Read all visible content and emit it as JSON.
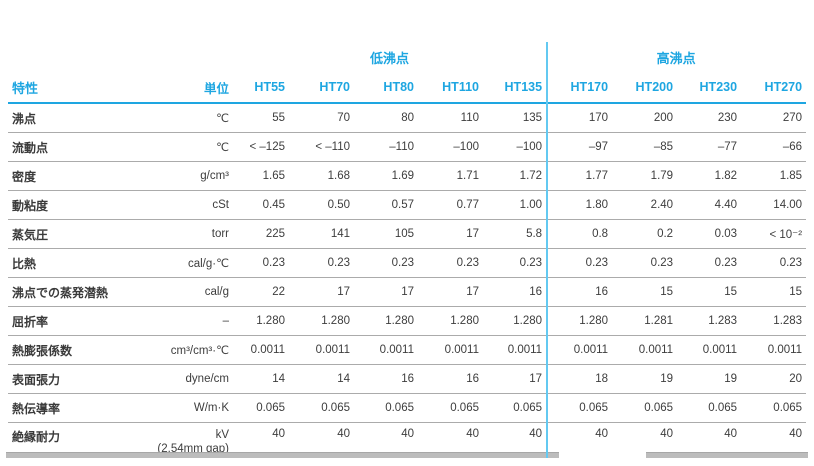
{
  "colors": {
    "accent_blue": "#1ea6e1",
    "divider_blue": "#63c9f1",
    "body_text": "#3d3d3d",
    "row_separator": "#ababab",
    "footer_gray": "#bcbcbc"
  },
  "table": {
    "group_headers": {
      "low": "低沸点",
      "high": "高沸点"
    },
    "col_headers": {
      "property": "特性",
      "unit": "単位",
      "low": [
        "HT55",
        "HT70",
        "HT80",
        "HT110",
        "HT135"
      ],
      "high": [
        "HT170",
        "HT200",
        "HT230",
        "HT270"
      ]
    },
    "rows": [
      {
        "property": "沸点",
        "unit": "℃",
        "values": [
          "55",
          "70",
          "80",
          "110",
          "135",
          "170",
          "200",
          "230",
          "270"
        ]
      },
      {
        "property": "流動点",
        "unit": "℃",
        "values": [
          "< –125",
          "< –110",
          "–110",
          "–100",
          "–100",
          "–97",
          "–85",
          "–77",
          "–66"
        ]
      },
      {
        "property": "密度",
        "unit": "g/cm³",
        "values": [
          "1.65",
          "1.68",
          "1.69",
          "1.71",
          "1.72",
          "1.77",
          "1.79",
          "1.82",
          "1.85"
        ]
      },
      {
        "property": "動粘度",
        "unit": "cSt",
        "values": [
          "0.45",
          "0.50",
          "0.57",
          "0.77",
          "1.00",
          "1.80",
          "2.40",
          "4.40",
          "14.00"
        ]
      },
      {
        "property": "蒸気圧",
        "unit": "torr",
        "values": [
          "225",
          "141",
          "105",
          "17",
          "5.8",
          "0.8",
          "0.2",
          "0.03",
          "< 10⁻²"
        ]
      },
      {
        "property": "比熱",
        "unit": "cal/g·℃",
        "values": [
          "0.23",
          "0.23",
          "0.23",
          "0.23",
          "0.23",
          "0.23",
          "0.23",
          "0.23",
          "0.23"
        ]
      },
      {
        "property": "沸点での蒸発潜熱",
        "unit": "cal/g",
        "values": [
          "22",
          "17",
          "17",
          "17",
          "16",
          "16",
          "15",
          "15",
          "15"
        ]
      },
      {
        "property": "屈折率",
        "unit": "–",
        "values": [
          "1.280",
          "1.280",
          "1.280",
          "1.280",
          "1.280",
          "1.280",
          "1.281",
          "1.283",
          "1.283"
        ]
      },
      {
        "property": "熱膨張係数",
        "unit": "cm³/cm³·℃",
        "values": [
          "0.0011",
          "0.0011",
          "0.0011",
          "0.0011",
          "0.0011",
          "0.0011",
          "0.0011",
          "0.0011",
          "0.0011"
        ]
      },
      {
        "property": "表面張力",
        "unit": "dyne/cm",
        "values": [
          "14",
          "14",
          "16",
          "16",
          "17",
          "18",
          "19",
          "19",
          "20"
        ]
      },
      {
        "property": "熱伝導率",
        "unit": "W/m·K",
        "values": [
          "0.065",
          "0.065",
          "0.065",
          "0.065",
          "0.065",
          "0.065",
          "0.065",
          "0.065",
          "0.065"
        ]
      },
      {
        "property": "絶縁耐力",
        "unit": "kV",
        "unit_line2": "(2.54mm gap)",
        "values": [
          "40",
          "40",
          "40",
          "40",
          "40",
          "40",
          "40",
          "40",
          "40"
        ]
      }
    ]
  }
}
